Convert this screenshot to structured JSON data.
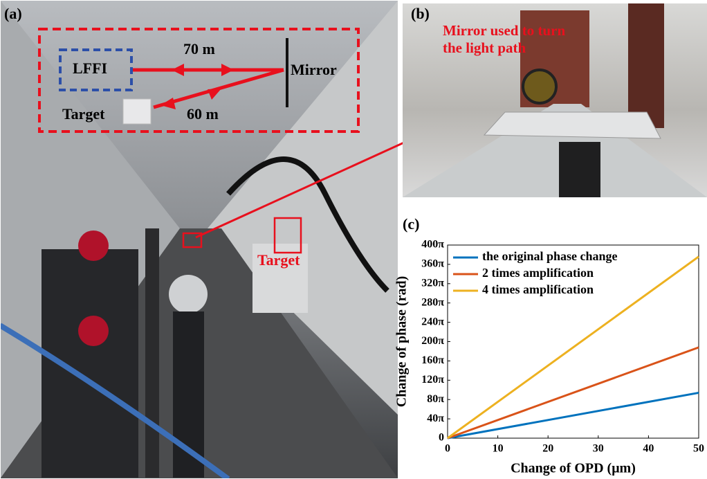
{
  "panels": {
    "a": {
      "label": "(a)",
      "lffi": "LFFI",
      "dist1": "70 m",
      "mirror": "Mirror",
      "target": "Target",
      "dist2": "60 m",
      "photo_target": "Target"
    },
    "b": {
      "label": "(b)",
      "annotation": "Mirror used to turn the light path"
    },
    "c": {
      "label": "(c)"
    }
  },
  "chart_data": {
    "type": "line",
    "x_label": "Change of OPD (μm)",
    "y_label": "Change of phase (rad)",
    "x": [
      0,
      50
    ],
    "series": [
      {
        "name": "the original phase change",
        "color": "#0072bd",
        "values": [
          0,
          94
        ]
      },
      {
        "name": "2 times amplification",
        "color": "#d95319",
        "values": [
          0,
          188
        ]
      },
      {
        "name": "4 times amplification",
        "color": "#edb120",
        "values": [
          0,
          376
        ]
      }
    ],
    "xlim": [
      0,
      50
    ],
    "xticks": [
      0,
      10,
      20,
      30,
      40,
      50
    ],
    "ylim": [
      0,
      400
    ],
    "yticks": [
      0,
      {
        "value": 40,
        "label": "40π"
      },
      {
        "value": 80,
        "label": "80π"
      },
      {
        "value": 120,
        "label": "120π"
      },
      {
        "value": 160,
        "label": "160π"
      },
      {
        "value": 200,
        "label": "200π"
      },
      {
        "value": 240,
        "label": "240π"
      },
      {
        "value": 280,
        "label": "280π"
      },
      {
        "value": 320,
        "label": "320π"
      },
      {
        "value": 360,
        "label": "360π"
      },
      {
        "value": 400,
        "label": "400π"
      }
    ],
    "legend": "upper left",
    "grid": false
  }
}
